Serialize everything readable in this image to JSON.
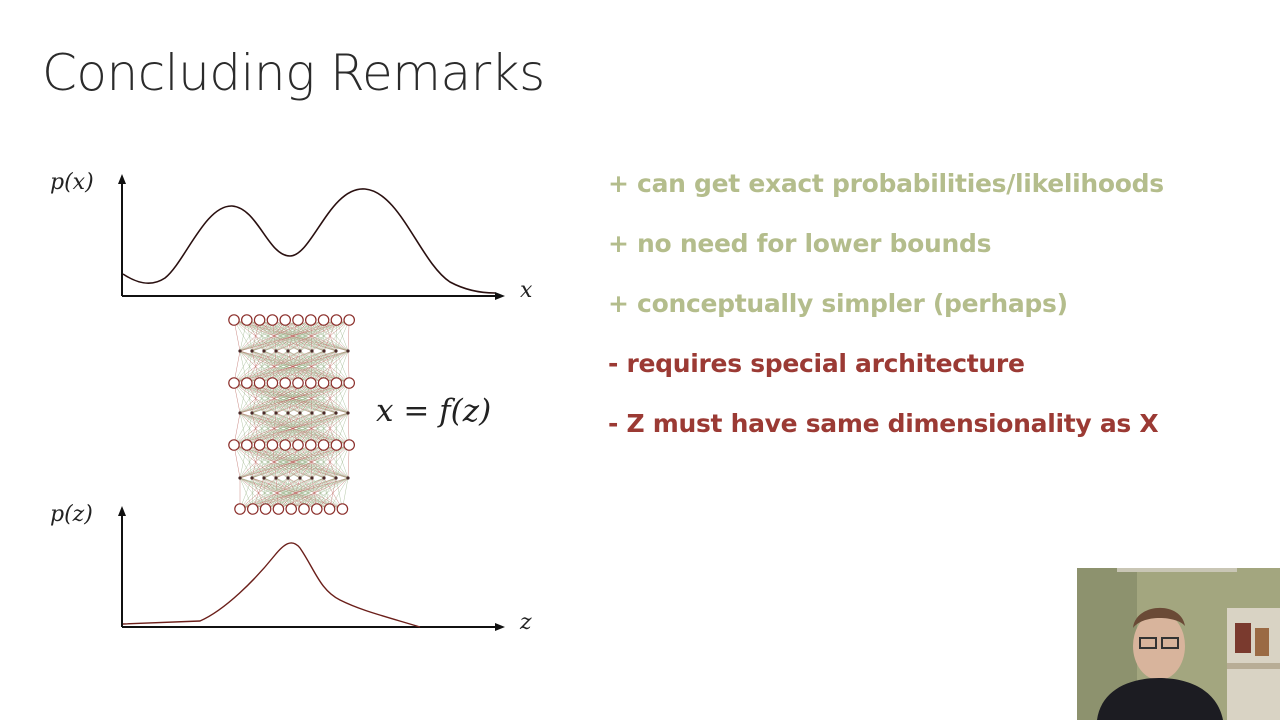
{
  "slide": {
    "title": "Concluding Remarks"
  },
  "diagram": {
    "top_plot_ylabel": "p(x)",
    "top_plot_xlabel": "x",
    "bottom_plot_ylabel": "p(z)",
    "bottom_plot_xlabel": "z",
    "equation": "x = f(z)"
  },
  "bullets": [
    {
      "text": "+ can get exact probabilities/likelihoods",
      "color": "#b4bd8c"
    },
    {
      "text": "+ no need for lower bounds",
      "color": "#b4bd8c"
    },
    {
      "text": "+ conceptually simpler (perhaps)",
      "color": "#b4bd8c"
    },
    {
      "text": "- requires special architecture",
      "color": "#9b3a34"
    },
    {
      "text": "- Z must have same dimensionality as X",
      "color": "#9b3a34"
    }
  ],
  "colors": {
    "positive": "#b4bd8c",
    "negative": "#9b3a34",
    "network_edge_green": "#9bb48a",
    "network_edge_red": "#b8625a",
    "node_outline": "#8b2e2a"
  }
}
